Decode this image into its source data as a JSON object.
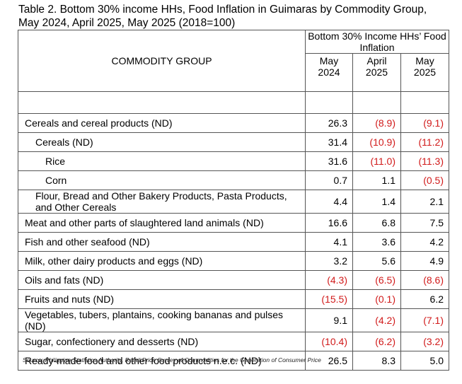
{
  "title": "Table 2.  Bottom 30% income HHs, Food Inflation in Guimaras by Commodity Group, May 2024, April 2025, May 2025 (2018=100)",
  "header": {
    "commodity_group": "COMMODITY GROUP",
    "bottom_label": "Bottom 30% Income HHs’ Food Inflation",
    "col1_line1": "May",
    "col1_line2": "2024",
    "col2_line1": "April",
    "col2_line2": "2025",
    "col3_line1": "May",
    "col3_line2": "2025"
  },
  "rows": [
    {
      "name": "Cereals and cereal products (ND)",
      "level": 0,
      "may2024": "26.3",
      "apr2025": "(8.9)",
      "may2025": "(9.1)"
    },
    {
      "name": "Cereals (ND)",
      "level": 1,
      "may2024": "31.4",
      "apr2025": "(10.9)",
      "may2025": "(11.2)"
    },
    {
      "name": "Rice",
      "level": 2,
      "may2024": "31.6",
      "apr2025": "(11.0)",
      "may2025": "(11.3)"
    },
    {
      "name": "Corn",
      "level": 2,
      "may2024": "0.7",
      "apr2025": "1.1",
      "may2025": "(0.5)"
    },
    {
      "name": "Flour, Bread and Other Bakery Products, Pasta Products, and Other Cereals",
      "level": 1,
      "may2024": "4.4",
      "apr2025": "1.4",
      "may2025": "2.1"
    },
    {
      "name": "Meat and other parts of slaughtered land animals (ND)",
      "level": 0,
      "may2024": "16.6",
      "apr2025": "6.8",
      "may2025": "7.5"
    },
    {
      "name": "Fish and other seafood (ND)",
      "level": 0,
      "may2024": "4.1",
      "apr2025": "3.6",
      "may2025": "4.2"
    },
    {
      "name": "Milk, other dairy products and eggs (ND)",
      "level": 0,
      "may2024": "3.2",
      "apr2025": "5.6",
      "may2025": "4.9"
    },
    {
      "name": "Oils and fats (ND)",
      "level": 0,
      "may2024": "(4.3)",
      "apr2025": "(6.5)",
      "may2025": "(8.6)"
    },
    {
      "name": "Fruits and nuts (ND)",
      "level": 0,
      "may2024": "(15.5)",
      "apr2025": "(0.1)",
      "may2025": "6.2"
    },
    {
      "name": "Vegetables, tubers, plantains, cooking bananas and pulses (ND)",
      "level": 0,
      "may2024": "9.1",
      "apr2025": "(4.2)",
      "may2025": "(7.1)"
    },
    {
      "name": "Sugar, confectionery and desserts (ND)",
      "level": 0,
      "may2024": "(10.4)",
      "apr2025": "(6.2)",
      "may2025": "(3.2)"
    },
    {
      "name": "Ready-made food and other food products n.e.c. (ND)",
      "level": 0,
      "may2024": "26.5",
      "apr2025": "8.3",
      "may2025": "5.0"
    }
  ],
  "row_heights": [
    27,
    27,
    27,
    27,
    32,
    27,
    27,
    27,
    27,
    27,
    32,
    27,
    27
  ],
  "source": "Source: Philippine Statistics Authority, Retail Price Survey of Commodities for the Generation of Consumer Price",
  "colors": {
    "negative": "#d11a1a"
  }
}
